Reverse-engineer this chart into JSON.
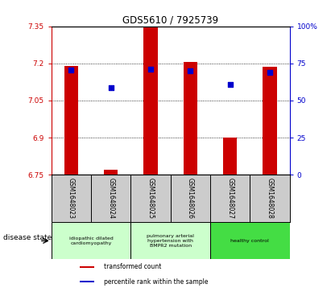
{
  "title": "GDS5610 / 7925739",
  "samples": [
    "GSM1648023",
    "GSM1648024",
    "GSM1648025",
    "GSM1648026",
    "GSM1648027",
    "GSM1648028"
  ],
  "bar_bottoms": [
    6.75,
    6.75,
    6.75,
    6.75,
    6.75,
    6.75
  ],
  "bar_tops": [
    7.19,
    6.77,
    7.35,
    7.205,
    6.9,
    7.185
  ],
  "blue_dot_y": [
    7.173,
    7.103,
    7.178,
    7.17,
    7.115,
    7.163
  ],
  "ylim_left": [
    6.75,
    7.35
  ],
  "ylim_right": [
    0,
    100
  ],
  "yticks_left": [
    6.75,
    6.9,
    7.05,
    7.2,
    7.35
  ],
  "yticks_right": [
    0,
    25,
    50,
    75,
    100
  ],
  "ytick_labels_left": [
    "6.75",
    "6.9",
    "7.05",
    "7.2",
    "7.35"
  ],
  "ytick_labels_right": [
    "0",
    "25",
    "50",
    "75",
    "100%"
  ],
  "bar_color": "#cc0000",
  "dot_color": "#0000cc",
  "hline_vals": [
    7.2,
    7.05,
    6.9
  ],
  "disease_groups": [
    {
      "label": "idiopathic dilated\ncardiomyopathy",
      "start": 0,
      "end": 1,
      "color": "#ccffcc"
    },
    {
      "label": "pulmonary arterial\nhypertension with\nBMPR2 mutation",
      "start": 2,
      "end": 3,
      "color": "#ccffcc"
    },
    {
      "label": "healthy control",
      "start": 4,
      "end": 5,
      "color": "#44dd44"
    }
  ],
  "legend_labels": [
    "transformed count",
    "percentile rank within the sample"
  ],
  "legend_colors": [
    "#cc0000",
    "#0000cc"
  ],
  "disease_state_label": "disease state",
  "bg_color": "#ffffff",
  "sample_bg": "#cccccc",
  "bar_width": 0.35,
  "dot_size": 20
}
